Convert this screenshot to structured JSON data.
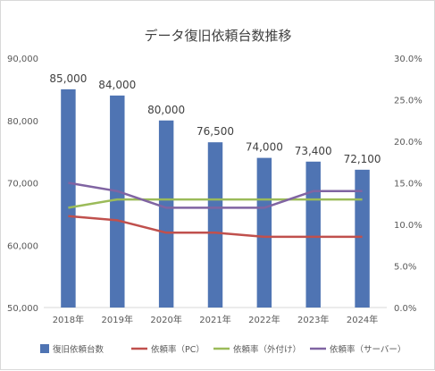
{
  "chart_data": {
    "type": "bar",
    "title": "データ復旧依頼台数推移",
    "categories": [
      "2018年",
      "2019年",
      "2020年",
      "2021年",
      "2022年",
      "2023年",
      "2024年"
    ],
    "bar_series": {
      "name": "復旧依頼台数",
      "values": [
        85000,
        84000,
        80000,
        76500,
        74000,
        73400,
        72100
      ],
      "data_labels": [
        "85,000",
        "84,000",
        "80,000",
        "76,500",
        "74,000",
        "73,400",
        "72,100"
      ],
      "color": "#4f74b3"
    },
    "line_series": [
      {
        "name": "依頼率（PC）",
        "values": [
          11.0,
          10.5,
          9.0,
          9.0,
          8.5,
          8.5,
          8.5
        ],
        "color": "#c0504d"
      },
      {
        "name": "依頼率（外付け）",
        "values": [
          12.0,
          13.0,
          13.0,
          13.0,
          13.0,
          13.0,
          13.0
        ],
        "color": "#9bbb59"
      },
      {
        "name": "依頼率（サーバー）",
        "values": [
          15.0,
          14.0,
          12.0,
          12.0,
          12.0,
          14.0,
          14.0
        ],
        "color": "#8064a2"
      }
    ],
    "ylim_left": [
      50000,
      90000
    ],
    "ylim_right": [
      0,
      30
    ],
    "y_left_ticks": [
      "50,000",
      "60,000",
      "70,000",
      "80,000",
      "90,000"
    ],
    "y_right_ticks": [
      "0.0%",
      "5.0%",
      "10.0%",
      "15.0%",
      "20.0%",
      "25.0%",
      "30.0%"
    ],
    "grid": false,
    "legend_position": "bottom"
  }
}
